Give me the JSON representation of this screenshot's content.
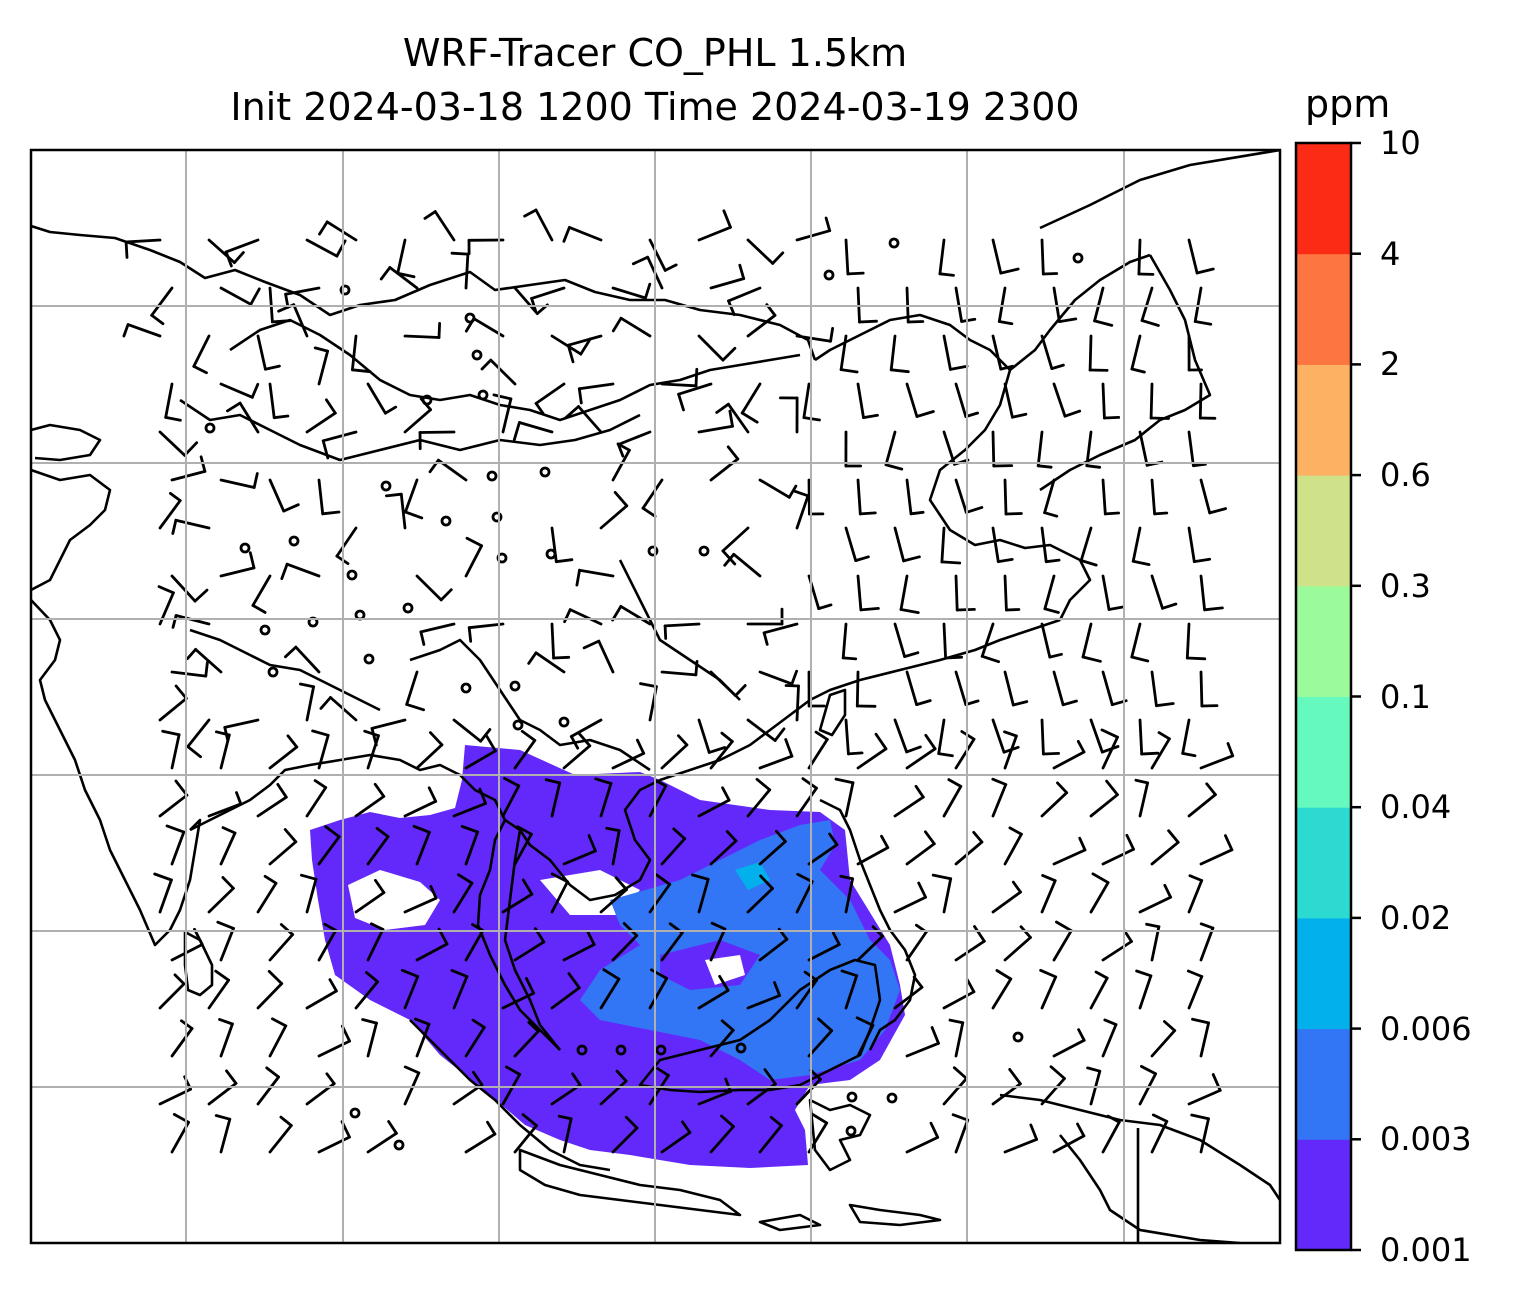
{
  "title": {
    "line1": "WRF-Tracer CO_PHL 1.5km",
    "line2": "Init 2024-03-18 1200 Time 2024-03-19 2300"
  },
  "colorbar": {
    "unit": "ppm",
    "levels": [
      "0.001",
      "0.003",
      "0.006",
      "0.02",
      "0.04",
      "0.1",
      "0.3",
      "0.6",
      "2",
      "4",
      "10"
    ],
    "colors": [
      "#6329fb",
      "#3276f5",
      "#02b0ec",
      "#2ddad2",
      "#66f9bd",
      "#9bfb9b",
      "#cfe28a",
      "#fdb163",
      "#fd7540",
      "#fc2b15"
    ]
  },
  "map": {
    "gridlines": true,
    "overlay": "wind barbs",
    "tracer_fill_colors": {
      "low": "#6329fb",
      "medium": "#3276f5",
      "high": "#02b0ec"
    }
  }
}
